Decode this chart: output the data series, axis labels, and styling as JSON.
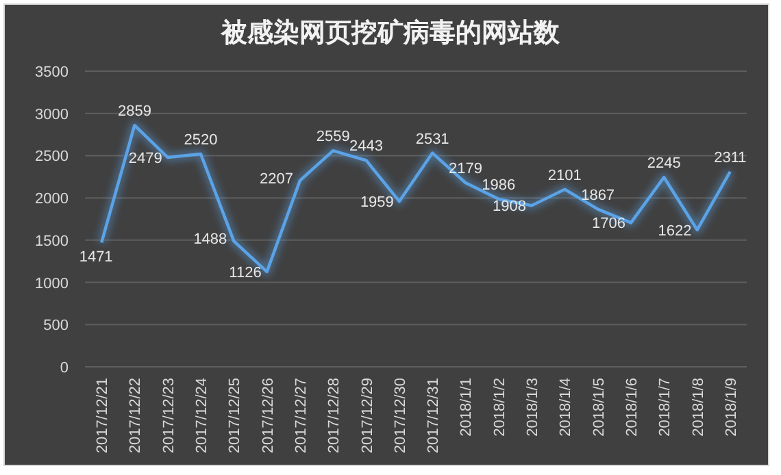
{
  "chart_data": {
    "type": "line",
    "title": "被感染网页挖矿病毒的网站数",
    "categories": [
      "2017/12/21",
      "2017/12/22",
      "2017/12/23",
      "2017/12/24",
      "2017/12/25",
      "2017/12/26",
      "2017/12/27",
      "2017/12/28",
      "2017/12/29",
      "2017/12/30",
      "2017/12/31",
      "2018/1/1",
      "2018/1/2",
      "2018/1/3",
      "2018/1/4",
      "2018/1/5",
      "2018/1/6",
      "2018/1/7",
      "2018/1/8",
      "2018/1/9"
    ],
    "series": [
      {
        "color": "#5ba3e6",
        "values": [
          1471,
          2859,
          2479,
          2520,
          1488,
          1126,
          2207,
          2559,
          2443,
          1959,
          2531,
          2179,
          1986,
          1908,
          2101,
          1867,
          1706,
          2245,
          1622,
          2311
        ]
      }
    ],
    "ylim": [
      0,
      3500
    ],
    "yticks": [
      0,
      500,
      1000,
      1500,
      2000,
      2500,
      3000,
      3500
    ],
    "grid": "y",
    "data_labels": true
  }
}
